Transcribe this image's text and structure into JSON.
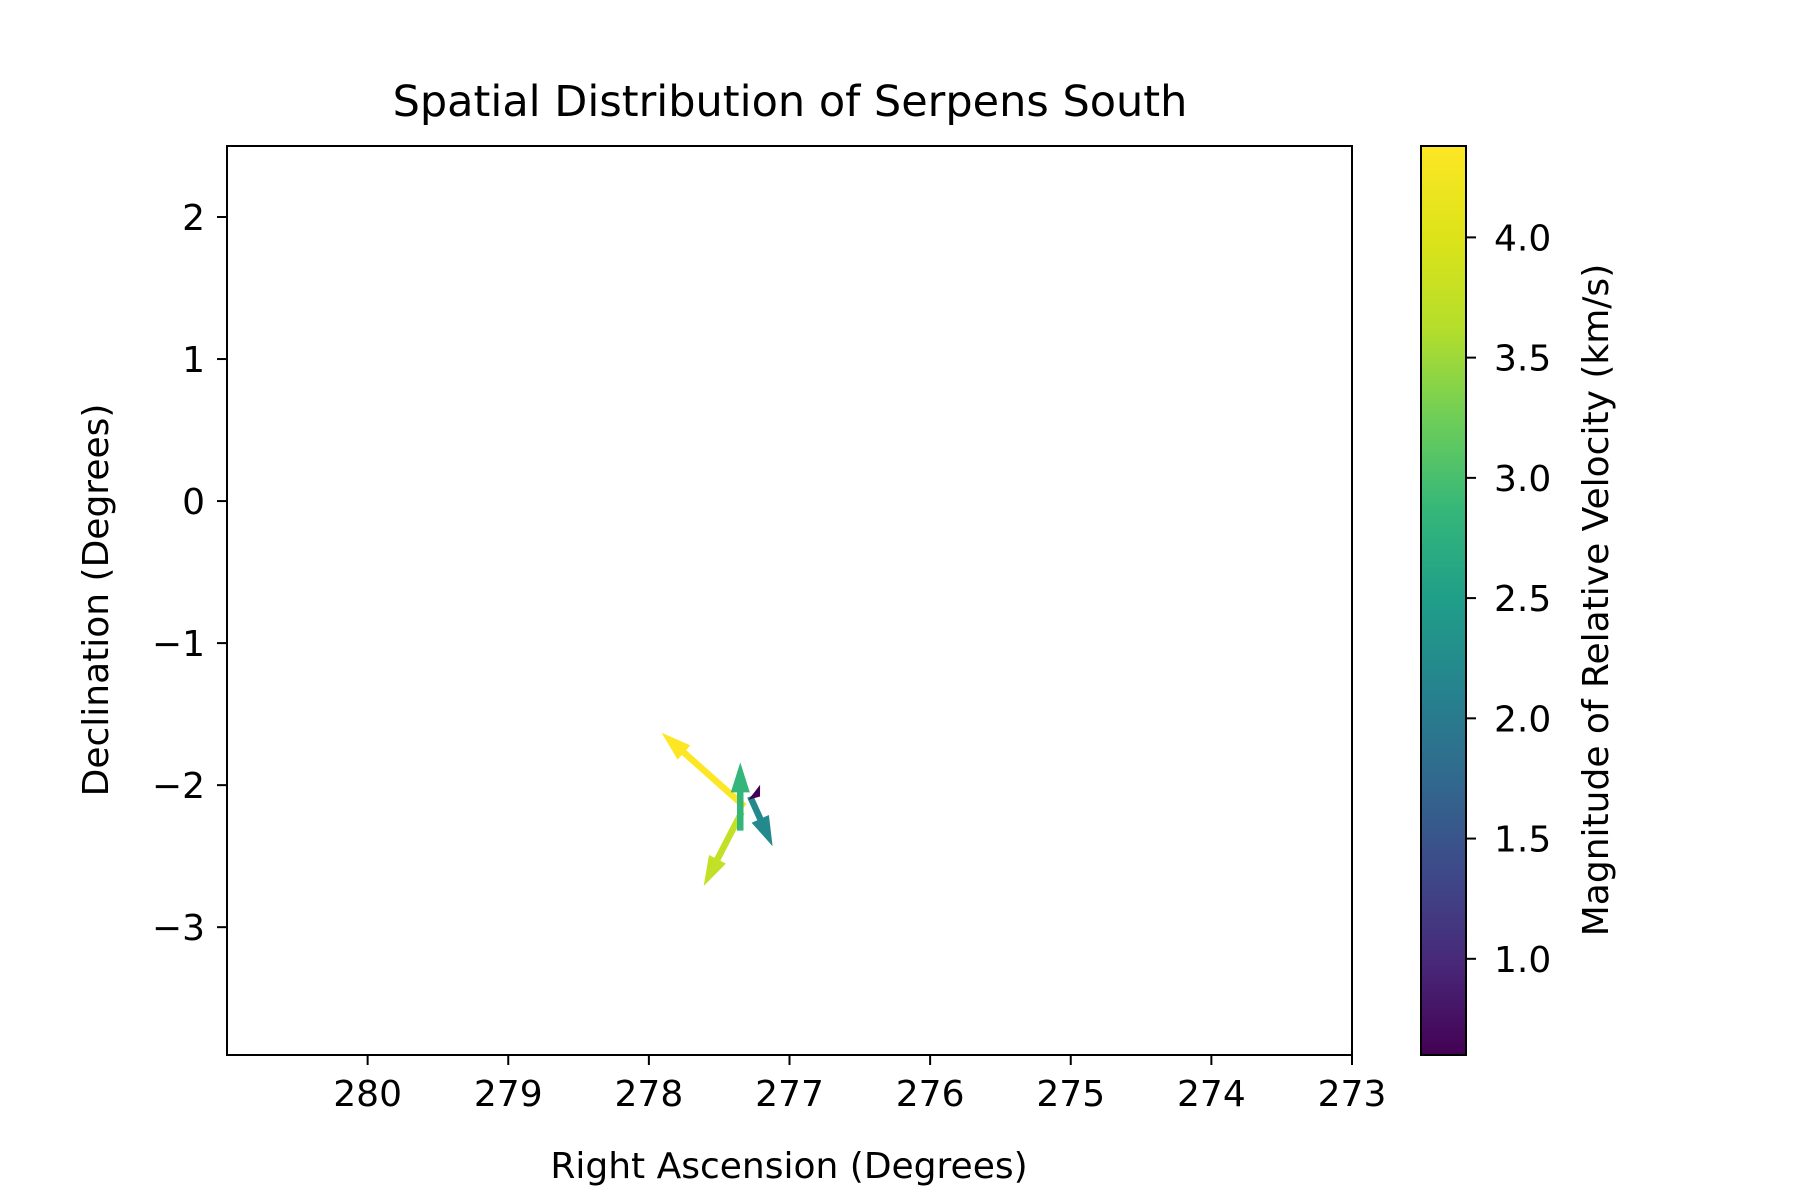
{
  "chart_data": {
    "type": "quiver",
    "title": "Spatial Distribution of Serpens South",
    "xlabel": "Right Ascension (Degrees)",
    "ylabel": "Declination (Degrees)",
    "xlim": [
      281.0,
      273.0
    ],
    "ylim": [
      -3.9,
      2.5
    ],
    "xticks": [
      280,
      279,
      278,
      277,
      276,
      275,
      274,
      273
    ],
    "yticks": [
      2,
      1,
      0,
      -1,
      -2,
      -3
    ],
    "ytick_labels": [
      "2",
      "1",
      "0",
      "−1",
      "−2",
      "−3"
    ],
    "grid": false,
    "colorbar": {
      "label": "Magnitude of Relative Velocity (km/s)",
      "range": [
        0.6,
        4.38
      ],
      "ticks": [
        1.0,
        1.5,
        2.0,
        2.5,
        3.0,
        3.5,
        4.0
      ],
      "tick_labels": [
        "1.0",
        "1.5",
        "2.0",
        "2.5",
        "3.0",
        "3.5",
        "4.0"
      ],
      "colormap": "viridis"
    },
    "arrows": [
      {
        "x": 277.32,
        "y": -2.15,
        "u": 0.59,
        "v": 0.52,
        "magnitude": 4.38
      },
      {
        "x": 277.34,
        "y": -2.19,
        "u": 0.27,
        "v": -0.52,
        "magnitude": 3.75
      },
      {
        "x": 277.35,
        "y": -2.32,
        "u": 0.0,
        "v": 0.48,
        "magnitude": 2.85
      },
      {
        "x": 277.28,
        "y": -2.08,
        "u": -0.16,
        "v": -0.35,
        "magnitude": 2.2
      },
      {
        "x": 277.25,
        "y": -2.05,
        "u": -0.04,
        "v": -0.03,
        "magnitude": 0.6
      }
    ]
  }
}
